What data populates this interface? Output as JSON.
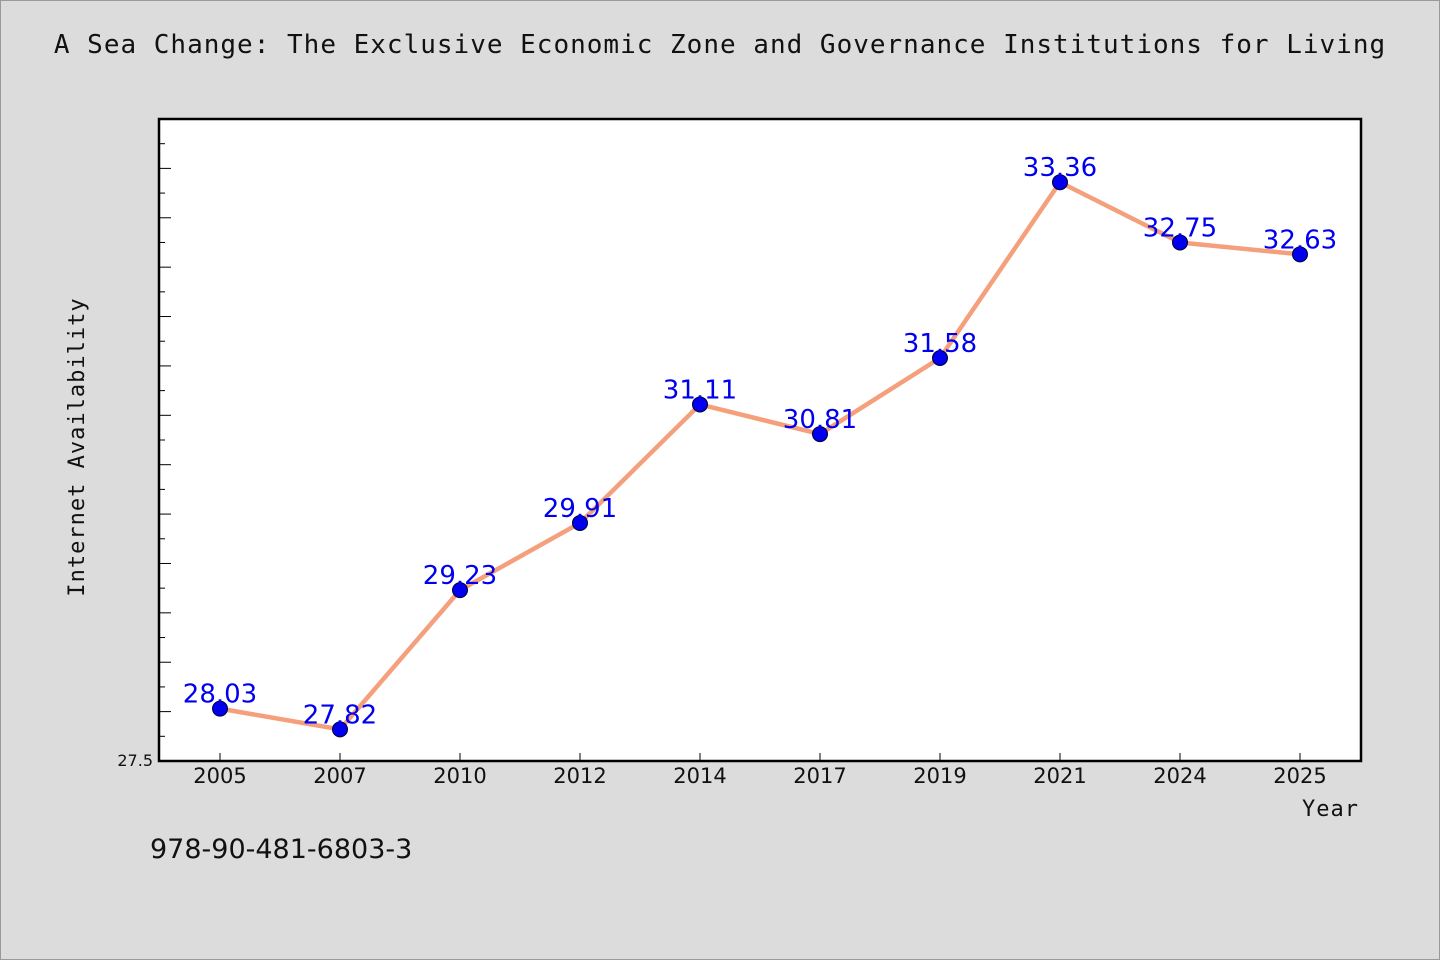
{
  "chart_data": {
    "type": "line",
    "title": "A Sea Change: The Exclusive Economic Zone and Governance Institutions for Living",
    "xlabel": "Year",
    "ylabel": "Internet Availability",
    "categories": [
      "2005",
      "2007",
      "2010",
      "2012",
      "2014",
      "2017",
      "2019",
      "2021",
      "2024",
      "2025"
    ],
    "series": [
      {
        "values": [
          28.03,
          27.82,
          29.23,
          29.91,
          31.11,
          30.81,
          31.58,
          33.36,
          32.75,
          32.63
        ],
        "labels": [
          "28.03",
          "27.82",
          "29.23",
          "29.91",
          "31.11",
          "30.81",
          "31.58",
          "33.36",
          "32.75",
          "32.63"
        ]
      }
    ],
    "ylim": [
      27.5,
      34.0
    ],
    "yticks_labeled": [
      "27.5"
    ],
    "grid": false,
    "line_color": "#f4a07c",
    "marker_color": "#0000ee",
    "label_color": "#0000ee"
  },
  "footer": {
    "note": "978-90-481-6803-3"
  }
}
